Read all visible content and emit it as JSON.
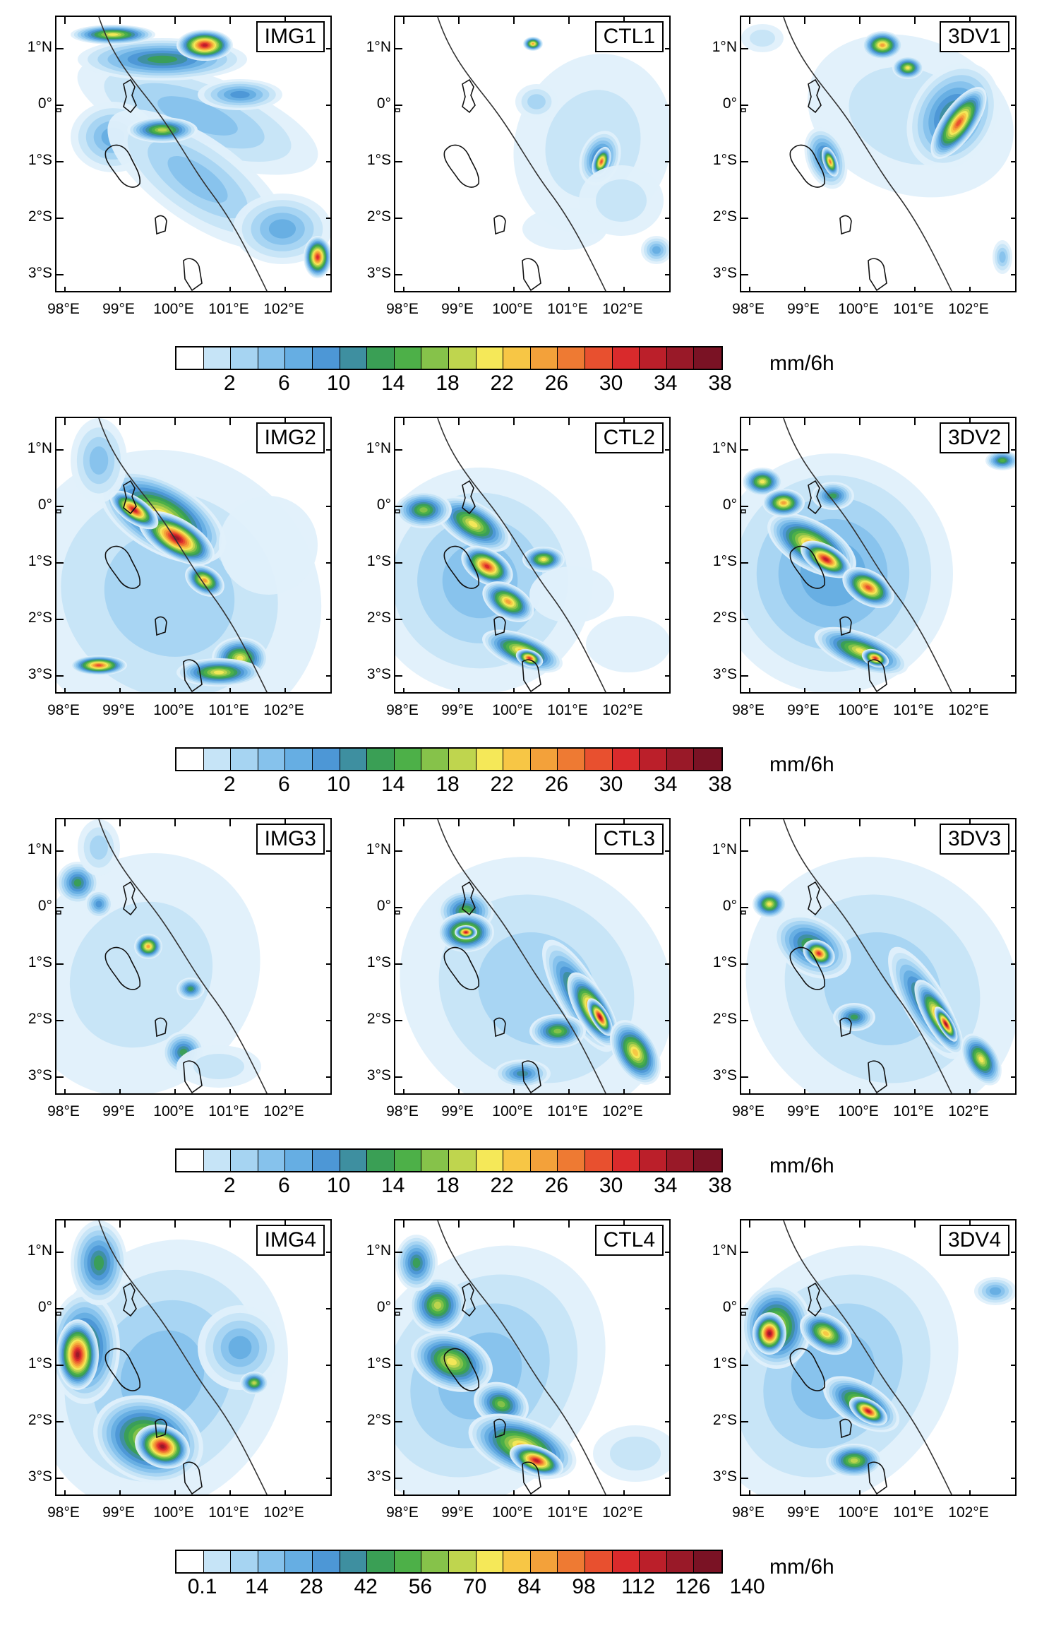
{
  "latitude_labels": [
    "1°N",
    "0°",
    "1°S",
    "2°S",
    "3°S"
  ],
  "longitude_labels": [
    "98°E",
    "99°E",
    "100°E",
    "101°E",
    "102°E"
  ],
  "colors": [
    "#ffffff",
    "#e0f0fb",
    "#c6e4f7",
    "#a6d4f2",
    "#86c2ec",
    "#66aee3",
    "#4d97d6",
    "#3e8fa0",
    "#3a9f55",
    "#4db048",
    "#86c24a",
    "#bfd54e",
    "#f5e858",
    "#f7c645",
    "#f3a13a",
    "#ee7a33",
    "#e8502f",
    "#d92a2c",
    "#bb1f2a",
    "#991928",
    "#7a1224"
  ],
  "rows": [
    {
      "panels": [
        "IMG1",
        "CTL1",
        "3DV1"
      ],
      "colorbar_ticks": [
        "2",
        "6",
        "10",
        "14",
        "18",
        "22",
        "26",
        "30",
        "34",
        "38"
      ],
      "unit": "mm/6h"
    },
    {
      "panels": [
        "IMG2",
        "CTL2",
        "3DV2"
      ],
      "colorbar_ticks": [
        "2",
        "6",
        "10",
        "14",
        "18",
        "22",
        "26",
        "30",
        "34",
        "38"
      ],
      "unit": "mm/6h"
    },
    {
      "panels": [
        "IMG3",
        "CTL3",
        "3DV3"
      ],
      "colorbar_ticks": [
        "2",
        "6",
        "10",
        "14",
        "18",
        "22",
        "26",
        "30",
        "34",
        "38"
      ],
      "unit": "mm/6h"
    },
    {
      "panels": [
        "IMG4",
        "CTL4",
        "3DV4"
      ],
      "colorbar_ticks": [
        "0.1",
        "14",
        "28",
        "42",
        "56",
        "70",
        "84",
        "98",
        "112",
        "126",
        "140"
      ],
      "unit": "mm/6h"
    }
  ]
}
